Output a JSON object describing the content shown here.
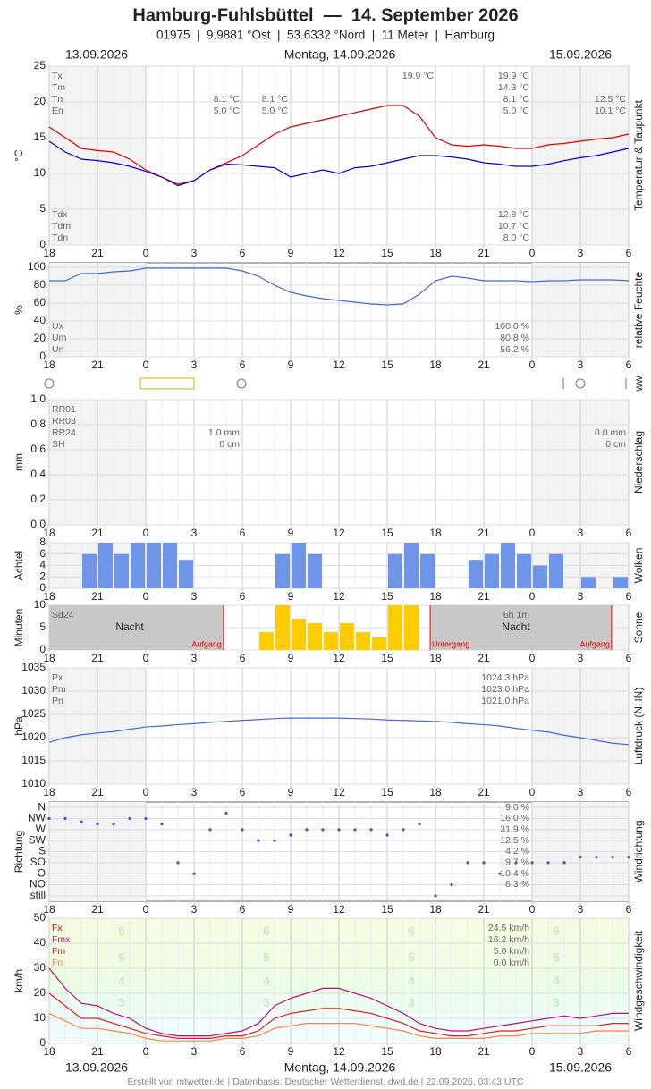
{
  "header": {
    "title": "Hamburg-Fuhlsbüttel  —  14. September 2026",
    "subtitle": "01975  |  9.9881 °Ost  |  53.6332 °Nord  |  11 Meter  |  Hamburg",
    "date_left": "13.09.2026",
    "date_center": "Montag, 14.09.2026",
    "date_right": "15.09.2026"
  },
  "footer": "Erstellt von mtwetter.de | Datenbasis: Deutscher Wetterdienst, dwd.de | 22.09.2026, 03:43 UTC",
  "x_axis": {
    "xlim": [
      -6,
      30
    ],
    "day_bounds": [
      0,
      24
    ],
    "xticks": [
      {
        "value": -6,
        "label": "18"
      },
      {
        "value": -3,
        "label": "21"
      },
      0,
      3,
      6,
      9,
      12,
      15,
      18,
      21,
      {
        "value": 24,
        "label": "0"
      },
      {
        "value": 27,
        "label": "3"
      },
      {
        "value": 30,
        "label": "6"
      }
    ],
    "hours": [
      -6,
      -5,
      -4,
      -3,
      -2,
      -1,
      0,
      1,
      2,
      3,
      4,
      5,
      6,
      7,
      8,
      9,
      10,
      11,
      12,
      13,
      14,
      15,
      16,
      17,
      18,
      19,
      20,
      21,
      22,
      23,
      24,
      25,
      26,
      27,
      28,
      29,
      30
    ]
  },
  "ww_label": "ww",
  "chart_data": [
    {
      "type": "line",
      "ylabel": "°C",
      "side_title": "Temperatur & Taupunkt",
      "ylim": [
        0,
        25
      ],
      "yticks": [
        0,
        5,
        10,
        15,
        20,
        25
      ],
      "series": [
        {
          "color": "#e00000",
          "values": [
            16.5,
            15,
            13.5,
            13.2,
            13,
            12,
            10.5,
            9.5,
            8.5,
            9,
            10.5,
            11.5,
            12.5,
            14,
            15.5,
            16.5,
            17,
            17.5,
            18,
            18.5,
            19,
            19.5,
            19.5,
            18,
            15,
            14,
            13.8,
            14,
            13.8,
            13.5,
            13.5,
            14,
            14.2,
            14.5,
            14.8,
            15,
            15.5
          ]
        },
        {
          "color": "#0000dd",
          "values": [
            14.5,
            13,
            12,
            11.8,
            11.5,
            11,
            10.3,
            9.5,
            8.3,
            9,
            10.5,
            11.3,
            11.2,
            11,
            10.8,
            9.5,
            10,
            10.5,
            10,
            10.8,
            11,
            11.5,
            12,
            12.5,
            12.5,
            12.3,
            12,
            11.5,
            11.3,
            11,
            11,
            11.3,
            11.8,
            12.2,
            12.5,
            13,
            13.5
          ]
        }
      ],
      "stats": [
        {
          "labels": [
            "Tx",
            "Tm",
            "Tn",
            "En"
          ],
          "columns": [
            [
              null,
              null,
              "8.1 °C",
              "5.0 °C"
            ],
            [
              null,
              null,
              "8.1 °C",
              "5.0 °C"
            ],
            [
              "19.9 °C",
              null,
              null,
              null
            ],
            [
              "19.9 °C",
              "14.3 °C",
              "8.1 °C",
              "5.0 °C"
            ],
            [
              null,
              null,
              "12.5 °C",
              "10.1 °C"
            ]
          ]
        },
        {
          "labels": [
            "Tdx",
            "Tdm",
            "Tdn"
          ],
          "columns": [
            [
              "12.8 °C",
              "10.7 °C",
              "8.0 °C"
            ]
          ]
        }
      ]
    },
    {
      "type": "line",
      "ylabel": "%",
      "side_title": "relative Feuchte",
      "ylim": [
        0,
        105
      ],
      "yticks": [
        0,
        20,
        40,
        60,
        80,
        100
      ],
      "series": [
        {
          "color": "#4169e1",
          "values": [
            85,
            85,
            93,
            93,
            95,
            96,
            99,
            99,
            99,
            99,
            99,
            99,
            96,
            90,
            80,
            72,
            68,
            65,
            63,
            61,
            59,
            58,
            59,
            70,
            85,
            90,
            88,
            85,
            85,
            85,
            84,
            85,
            85,
            86,
            86,
            86,
            85
          ]
        }
      ],
      "stats": [
        {
          "labels": [
            "Ux",
            "Um",
            "Un"
          ],
          "columns": [
            [
              "100.0 %",
              "80.8 %",
              "56.2 %"
            ]
          ]
        }
      ]
    },
    {
      "type": "bar",
      "ylabel": "mm",
      "side_title": "Niederschlag",
      "ylim": [
        0,
        1
      ],
      "yticks": [
        {
          "value": 0,
          "label": "0.0"
        },
        0.2,
        0.4,
        0.6,
        0.8,
        {
          "value": 1,
          "label": "1.0"
        }
      ],
      "color": "#3366cc",
      "values": [
        0,
        0,
        0,
        0,
        0,
        0,
        0,
        0,
        0,
        0,
        0,
        0,
        0,
        0,
        0,
        0,
        0,
        0,
        0,
        0,
        0,
        0,
        0,
        0,
        0,
        0,
        0,
        0,
        0,
        0,
        0,
        0,
        0,
        0,
        0,
        0
      ],
      "stats": [
        {
          "labels": [
            "RR01",
            "RR03",
            "RR24",
            "SH"
          ],
          "columns": [
            [
              null,
              null,
              "1.0 mm",
              "0 cm"
            ],
            [
              null,
              null,
              "0.0 mm",
              "0 cm"
            ]
          ]
        }
      ]
    },
    {
      "type": "bar",
      "ylabel": "Achtel",
      "side_title": "Wolken",
      "ylim": [
        0,
        8
      ],
      "yticks": [
        0,
        2,
        4,
        6,
        8
      ],
      "color": "#6f95e8",
      "values": [
        0,
        0,
        6,
        8,
        6,
        8,
        8,
        8,
        5,
        0,
        0,
        0,
        0,
        0,
        6,
        8,
        6,
        0,
        0,
        0,
        0,
        6,
        8,
        6,
        0,
        0,
        5,
        6,
        8,
        6,
        4,
        6,
        0,
        2,
        0,
        2
      ]
    },
    {
      "type": "bar",
      "ylabel": "Minuten",
      "side_title": "Sonne",
      "ylim": [
        0,
        10
      ],
      "yticks": [
        0,
        5,
        10
      ],
      "color": "#ffcc00",
      "values": [
        0,
        0,
        0,
        0,
        0,
        0,
        0,
        0,
        0,
        0,
        0,
        0,
        0,
        4,
        10,
        7,
        6,
        4,
        6,
        4,
        3,
        10,
        10,
        0,
        0,
        0,
        0,
        0,
        0,
        0,
        0,
        0,
        0,
        0,
        0,
        0
      ],
      "night_label": "Nacht",
      "events": [
        {
          "label": "Aufgang",
          "x": 4.83
        },
        {
          "label": "Untergang",
          "x": 17.67
        },
        {
          "label": "Aufgang",
          "x": 28.94
        }
      ],
      "stats": [
        {
          "labels": [
            "Sd24"
          ],
          "columns": [
            [
              "6h 1m"
            ]
          ]
        }
      ]
    },
    {
      "type": "line",
      "ylabel": "hPa",
      "side_title": "Luftdruck (NHN)",
      "ylim": [
        1010,
        1035
      ],
      "yticks": [
        1010,
        1015,
        1020,
        1025,
        1030,
        1035
      ],
      "series": [
        {
          "color": "#4169e1",
          "values": [
            1019,
            1020,
            1020.6,
            1021,
            1021.3,
            1021.8,
            1022.3,
            1022.5,
            1022.8,
            1023,
            1023.3,
            1023.5,
            1023.7,
            1023.9,
            1024.1,
            1024.2,
            1024.2,
            1024.2,
            1024.2,
            1024.1,
            1024,
            1023.8,
            1023.7,
            1023.6,
            1023.5,
            1023.3,
            1023,
            1022.8,
            1022.5,
            1022,
            1021.6,
            1021.2,
            1020.5,
            1020,
            1019.4,
            1018.8,
            1018.5
          ]
        }
      ],
      "stats": [
        {
          "labels": [
            "Px",
            "Pm",
            "Pn"
          ],
          "columns": [
            [
              "1024.3 hPa",
              "1023.0 hPa",
              "1021.0 hPa"
            ]
          ]
        }
      ]
    },
    {
      "type": "scatter",
      "ylabel": "Richtung",
      "side_title": "Windrichtung",
      "ylim": [
        -0.5,
        8.5
      ],
      "yticks": [
        {
          "value": 0,
          "label": "still"
        },
        {
          "value": 1,
          "label": "NO"
        },
        {
          "value": 2,
          "label": "O"
        },
        {
          "value": 3,
          "label": "SO"
        },
        {
          "value": 4,
          "label": "S"
        },
        {
          "value": 5,
          "label": "SW"
        },
        {
          "value": 6,
          "label": "W"
        },
        {
          "value": 7,
          "label": "NW"
        },
        {
          "value": 8,
          "label": "N"
        }
      ],
      "color": "#3355dd",
      "values": [
        7,
        7,
        6.7,
        6.5,
        6.5,
        7,
        7,
        6.5,
        3,
        2,
        6,
        7.5,
        6,
        5,
        5,
        5.5,
        6,
        6,
        6,
        6,
        6,
        5.5,
        6,
        6.5,
        0,
        1,
        3,
        3,
        2,
        3,
        3,
        3,
        3,
        3.5,
        3.5,
        3.5,
        3.5
      ],
      "stats": [
        {
          "columns": [
            [
              "9.0 %",
              "16.0 %",
              "31.9 %",
              "12.5 %",
              "4.2 %",
              "9.7 %",
              "10.4 %",
              "6.3 %"
            ]
          ]
        }
      ]
    },
    {
      "type": "line",
      "ylabel": "km/h",
      "side_title": "Windgeschwindigkeit",
      "ylim": [
        0,
        50
      ],
      "yticks": [
        0,
        10,
        20,
        30,
        40,
        50
      ],
      "beaufort": [
        {
          "number": 3,
          "lower": 12,
          "upper": 20
        },
        {
          "number": 4,
          "lower": 20,
          "upper": 29
        },
        {
          "number": 5,
          "lower": 29,
          "upper": 39
        },
        {
          "number": 6,
          "lower": 39,
          "upper": 50
        }
      ],
      "series": [
        {
          "color": "#c0106a",
          "values": [
            30,
            22,
            16,
            15,
            12,
            10,
            6,
            4,
            3,
            3,
            3,
            4,
            5,
            8,
            15,
            18,
            20,
            22,
            22,
            20,
            18,
            15,
            12,
            8,
            6,
            5,
            5,
            6,
            7,
            8,
            9,
            10,
            11,
            10,
            11,
            12,
            12
          ]
        },
        {
          "color": "#e02020",
          "values": [
            20,
            15,
            10,
            10,
            8,
            6,
            4,
            3,
            2,
            2,
            2,
            3,
            3,
            5,
            10,
            12,
            13,
            14,
            14,
            13,
            12,
            10,
            8,
            5,
            4,
            3,
            3,
            4,
            5,
            5,
            6,
            7,
            7,
            7,
            7,
            8,
            8
          ]
        },
        {
          "color": "#ff8040",
          "values": [
            12,
            9,
            6,
            6,
            5,
            4,
            2,
            1,
            1,
            1,
            1,
            2,
            2,
            3,
            6,
            7,
            8,
            8,
            8,
            8,
            7,
            6,
            5,
            3,
            2,
            2,
            2,
            2,
            3,
            3,
            4,
            4,
            4,
            4,
            5,
            5,
            5
          ]
        }
      ],
      "stats": [
        {
          "labels": [
            "Fx",
            "Fmx",
            "Fm",
            "Fn"
          ],
          "columns": [
            [
              "24.5 km/h",
              "16.2 km/h",
              "5.0 km/h",
              "0.0 km/h"
            ]
          ]
        }
      ]
    }
  ]
}
